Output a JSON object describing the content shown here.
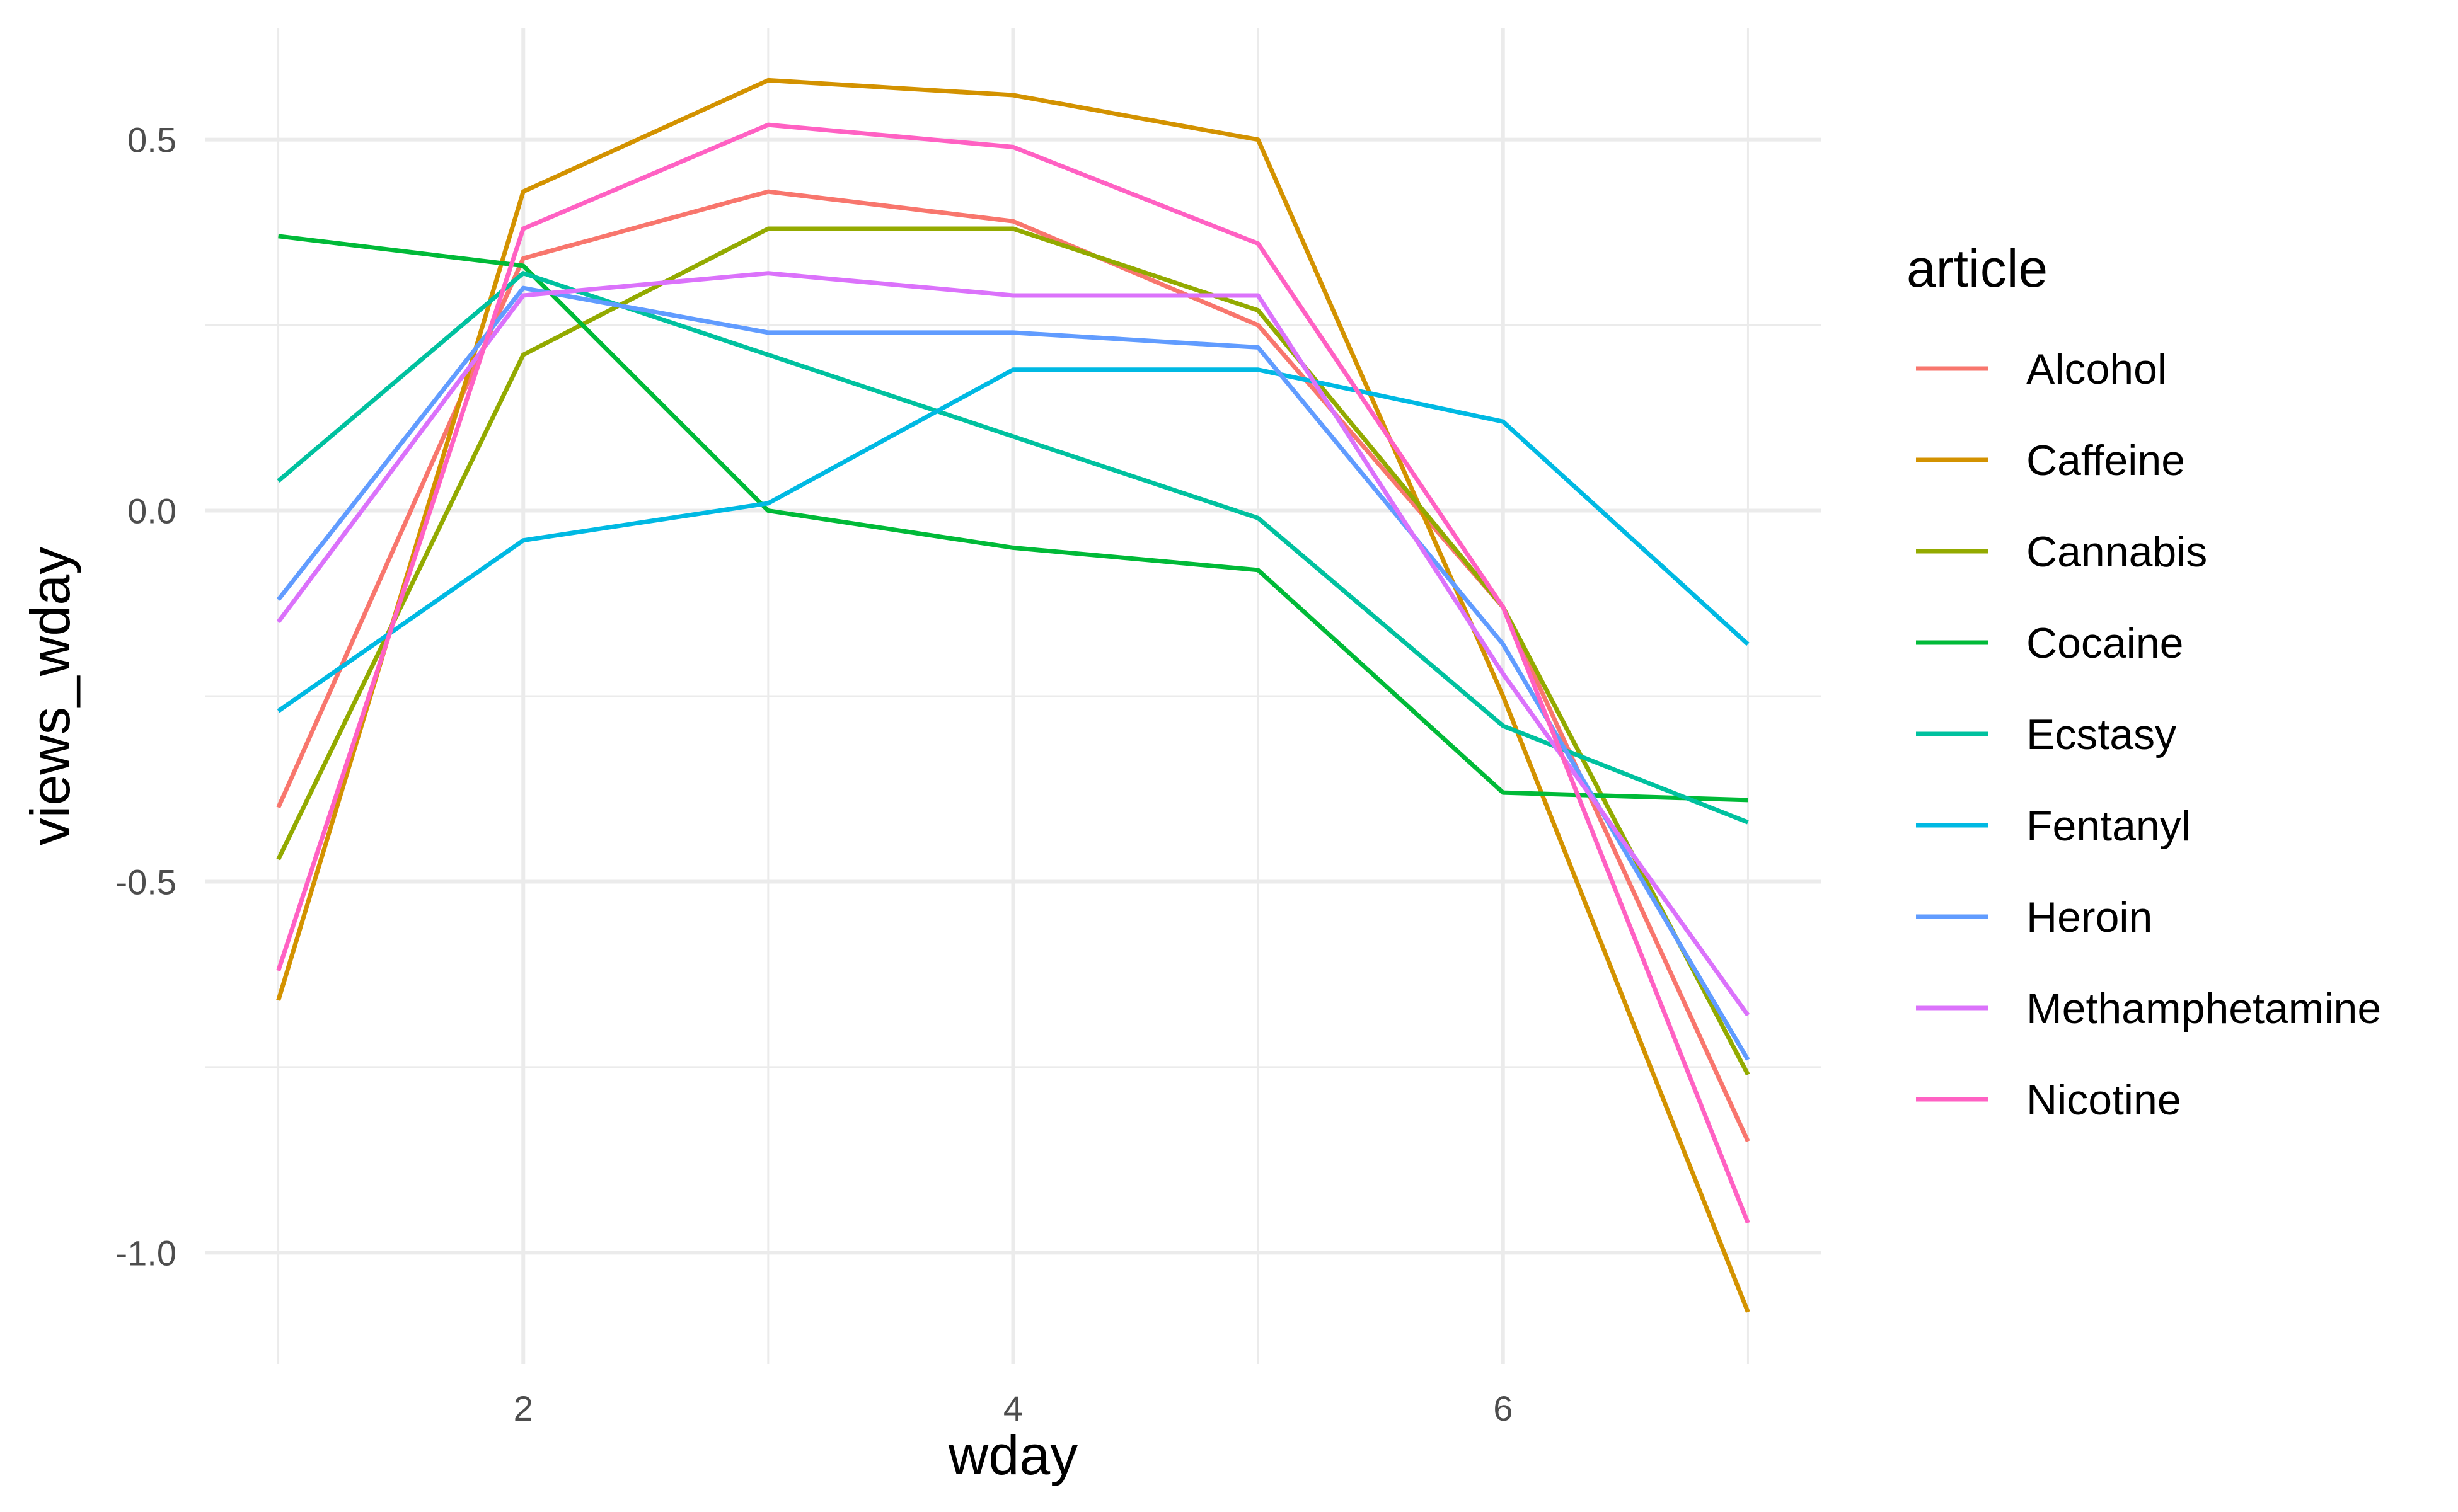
{
  "chart_data": {
    "type": "line",
    "title": "",
    "xlabel": "wday",
    "ylabel": "views_wday",
    "xlim": [
      1,
      7
    ],
    "ylim": [
      -1.15,
      0.65
    ],
    "x_ticks": [
      2,
      4,
      6
    ],
    "x_tick_labels": [
      "2",
      "4",
      "6"
    ],
    "y_ticks": [
      -1.0,
      -0.5,
      0.0,
      0.5
    ],
    "y_tick_labels": [
      "-1.0",
      "-0.5",
      "0.0",
      "0.5"
    ],
    "grid": true,
    "legend_title": "article",
    "legend_position": "right",
    "x": [
      1,
      2,
      3,
      4,
      5,
      6,
      7
    ],
    "series": [
      {
        "name": "Alcohol",
        "color": "#F8766D",
        "values": [
          -0.4,
          0.34,
          0.43,
          0.39,
          0.25,
          -0.13,
          -0.85
        ]
      },
      {
        "name": "Caffeine",
        "color": "#D39200",
        "values": [
          -0.66,
          0.43,
          0.58,
          0.56,
          0.5,
          -0.25,
          -1.08
        ]
      },
      {
        "name": "Cannabis",
        "color": "#93AA00",
        "values": [
          -0.47,
          0.21,
          0.38,
          0.38,
          0.27,
          -0.13,
          -0.76
        ]
      },
      {
        "name": "Cocaine",
        "color": "#00BA38",
        "values": [
          0.37,
          0.33,
          0.0,
          -0.05,
          -0.08,
          -0.38,
          -0.39
        ]
      },
      {
        "name": "Ecstasy",
        "color": "#00C19F",
        "values": [
          0.04,
          0.32,
          0.21,
          0.1,
          -0.01,
          -0.29,
          -0.42
        ]
      },
      {
        "name": "Fentanyl",
        "color": "#00B9E3",
        "values": [
          -0.27,
          -0.04,
          0.01,
          0.19,
          0.19,
          0.12,
          -0.18
        ]
      },
      {
        "name": "Heroin",
        "color": "#619CFF",
        "values": [
          -0.12,
          0.3,
          0.24,
          0.24,
          0.22,
          -0.18,
          -0.74
        ]
      },
      {
        "name": "Methamphetamine",
        "color": "#DB72FB",
        "values": [
          -0.15,
          0.29,
          0.32,
          0.29,
          0.29,
          -0.22,
          -0.68
        ]
      },
      {
        "name": "Nicotine",
        "color": "#FF61C3",
        "values": [
          -0.62,
          0.38,
          0.52,
          0.49,
          0.36,
          -0.13,
          -0.96
        ]
      }
    ]
  }
}
